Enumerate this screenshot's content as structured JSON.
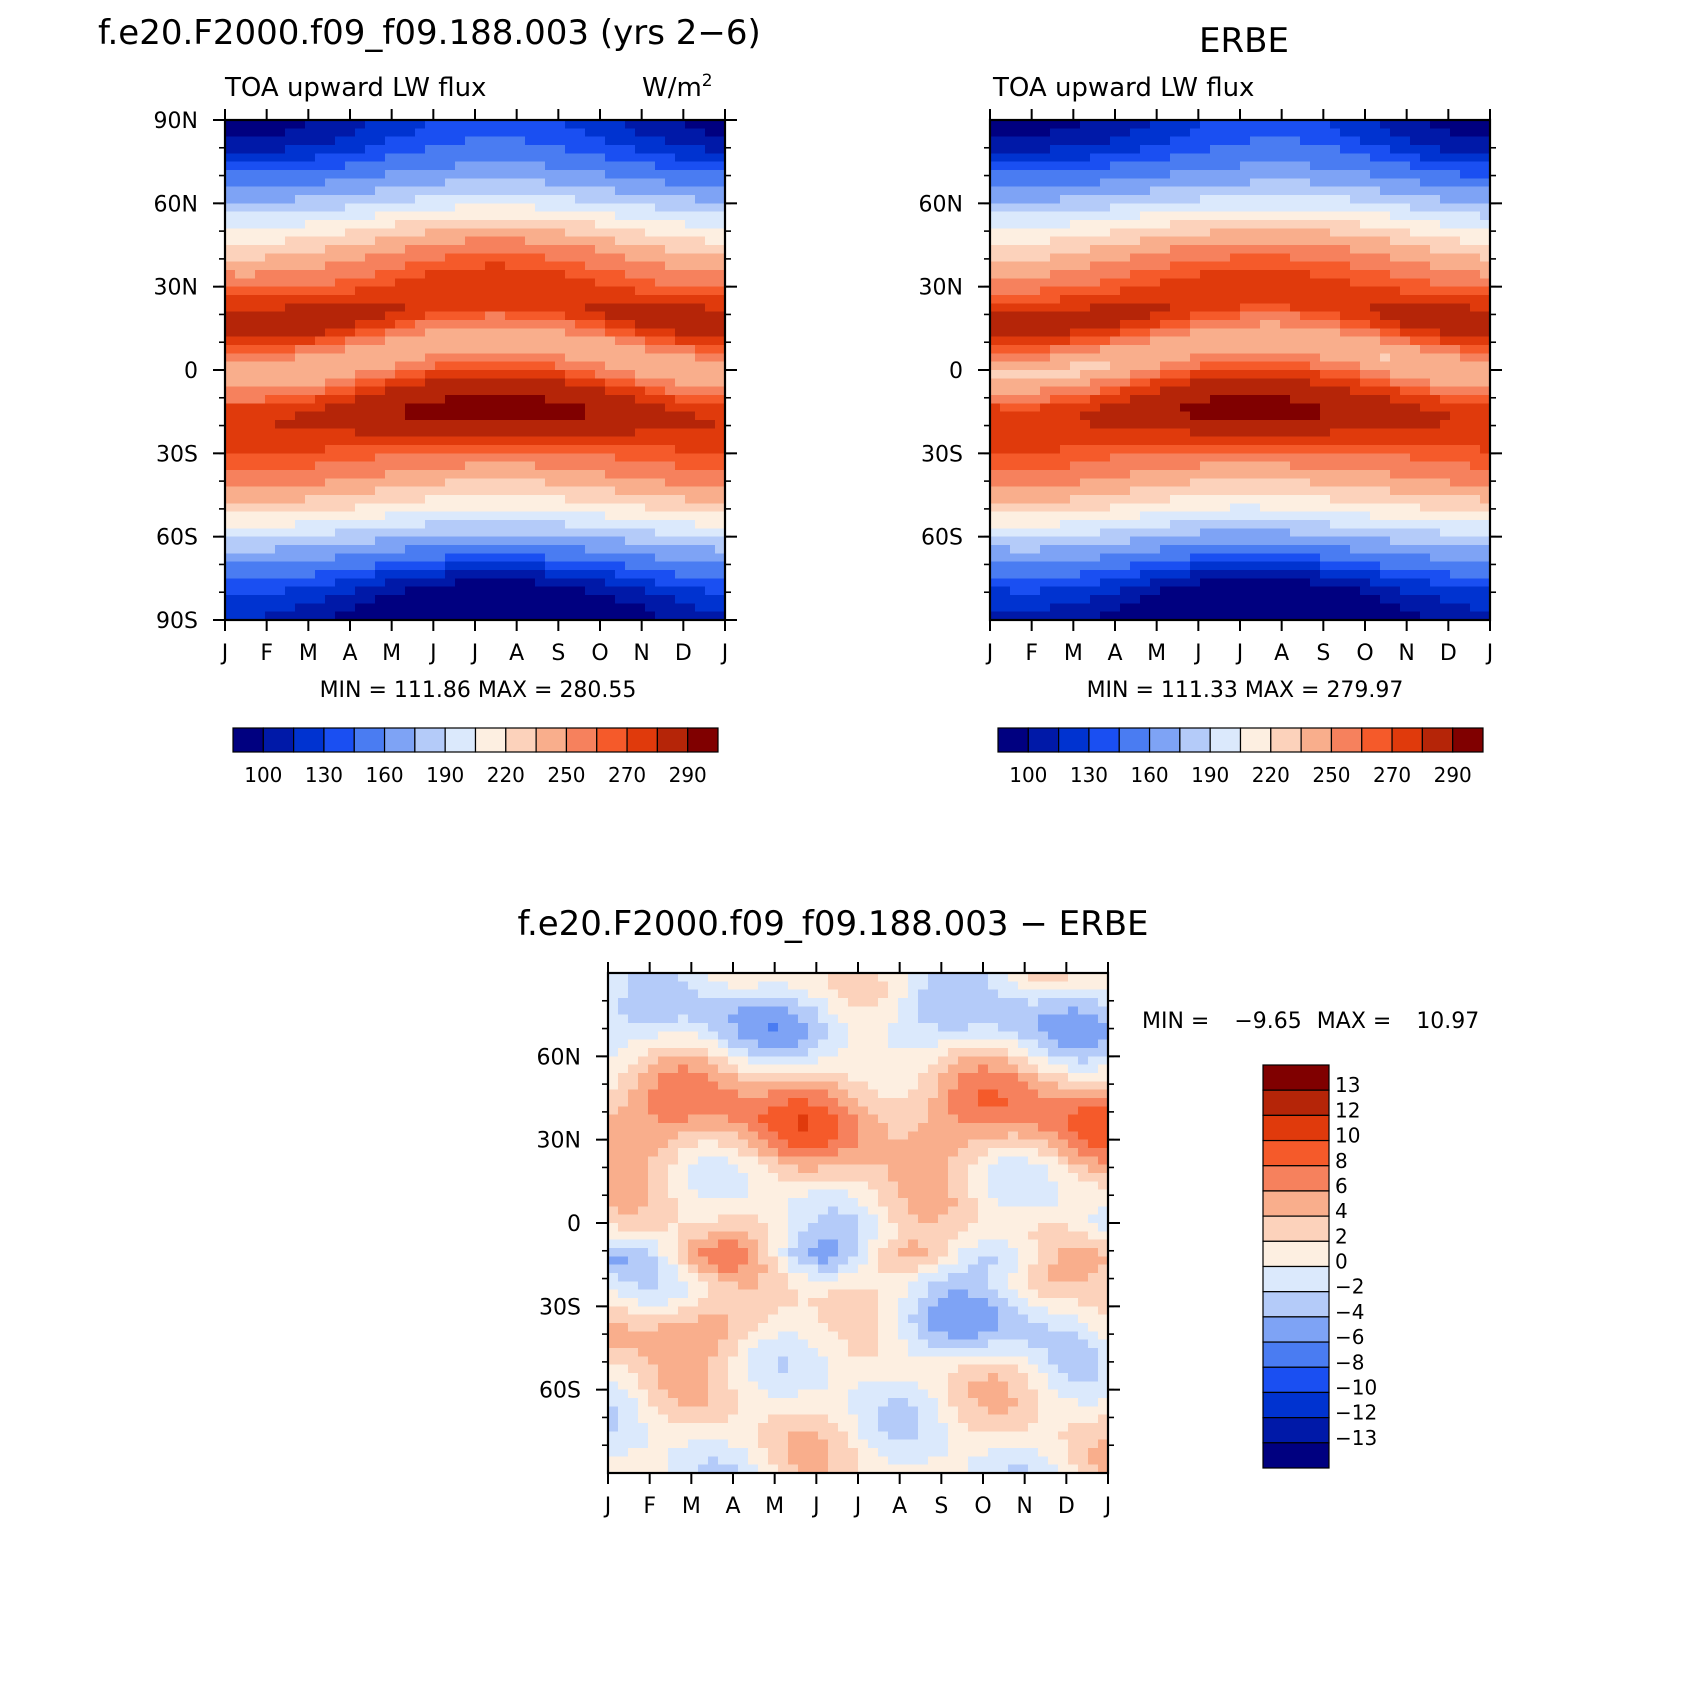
{
  "top_left": {
    "title": "f.e20.F2000.f09_f09.188.003 (yrs 2−6)",
    "left_subtitle": "TOA upward LW flux",
    "units": "W/m",
    "units_superscript": "2",
    "min_label": "MIN =",
    "min_value": "111.86",
    "max_label": "MAX =",
    "max_value": "280.55"
  },
  "top_right": {
    "title": "ERBE",
    "left_subtitle": "TOA upward LW flux",
    "min_label": "MIN =",
    "min_value": "111.33",
    "max_label": "MAX =",
    "max_value": "279.97"
  },
  "bottom": {
    "title": "f.e20.F2000.f09_f09.188.003 − ERBE",
    "min_label": "MIN =",
    "min_value": "−9.65",
    "max_label": "MAX =",
    "max_value": "10.97"
  },
  "chart_data": [
    {
      "type": "heatmap",
      "title": "f.e20.F2000.f09_f09.188.003 (yrs 2−6)",
      "subtitle_left": "TOA upward LW flux",
      "subtitle_right": "W/m2",
      "x_ticks": [
        "J",
        "F",
        "M",
        "A",
        "M",
        "J",
        "J",
        "A",
        "S",
        "O",
        "N",
        "D",
        "J"
      ],
      "y_ticks": [
        "90N",
        "60N",
        "30N",
        "0",
        "30S",
        "60S",
        "90S"
      ],
      "ylim": [
        -90,
        90
      ],
      "min": 111.86,
      "max": 280.55,
      "colorbar_labels": [
        "100",
        "130",
        "160",
        "190",
        "220",
        "250",
        "270",
        "290"
      ],
      "colorbar_levels": [
        100,
        110,
        120,
        130,
        145,
        160,
        175,
        190,
        205,
        220,
        235,
        250,
        260,
        270,
        280,
        290
      ],
      "palette": [
        "#000080",
        "#0019a8",
        "#0033d0",
        "#1a4ff2",
        "#4a7cf2",
        "#7ea3f5",
        "#b4cbf9",
        "#dbe9fc",
        "#fdefe1",
        "#fcd2bb",
        "#f9ae8c",
        "#f6815d",
        "#f55a2a",
        "#e03a0c",
        "#b52508",
        "#800000"
      ]
    },
    {
      "type": "heatmap",
      "title": "ERBE",
      "subtitle_left": "TOA upward LW flux",
      "x_ticks": [
        "J",
        "F",
        "M",
        "A",
        "M",
        "J",
        "J",
        "A",
        "S",
        "O",
        "N",
        "D",
        "J"
      ],
      "y_ticks": [
        "60N",
        "30N",
        "0",
        "30S",
        "60S"
      ],
      "ylim": [
        -90,
        90
      ],
      "min": 111.33,
      "max": 279.97,
      "colorbar_labels": [
        "100",
        "130",
        "160",
        "190",
        "220",
        "250",
        "270",
        "290"
      ],
      "colorbar_levels": [
        100,
        110,
        120,
        130,
        145,
        160,
        175,
        190,
        205,
        220,
        235,
        250,
        260,
        270,
        280,
        290
      ],
      "palette": [
        "#000080",
        "#0019a8",
        "#0033d0",
        "#1a4ff2",
        "#4a7cf2",
        "#7ea3f5",
        "#b4cbf9",
        "#dbe9fc",
        "#fdefe1",
        "#fcd2bb",
        "#f9ae8c",
        "#f6815d",
        "#f55a2a",
        "#e03a0c",
        "#b52508",
        "#800000"
      ]
    },
    {
      "type": "heatmap",
      "title": "f.e20.F2000.f09_f09.188.003 − ERBE",
      "x_ticks": [
        "J",
        "F",
        "M",
        "A",
        "M",
        "J",
        "J",
        "A",
        "S",
        "O",
        "N",
        "D",
        "J"
      ],
      "y_ticks": [
        "60N",
        "30N",
        "0",
        "30S",
        "60S"
      ],
      "ylim": [
        -90,
        90
      ],
      "min": -9.65,
      "max": 10.97,
      "colorbar_labels": [
        "13",
        "12",
        "10",
        "8",
        "6",
        "4",
        "2",
        "0",
        "−2",
        "−4",
        "−6",
        "−8",
        "−10",
        "−12",
        "−13"
      ],
      "colorbar_levels": [
        13,
        12,
        10,
        8,
        6,
        4,
        2,
        0,
        -2,
        -4,
        -6,
        -8,
        -10,
        -12,
        -13
      ],
      "palette": [
        "#800000",
        "#b52508",
        "#e03a0c",
        "#f55a2a",
        "#f6815d",
        "#f9ae8c",
        "#fcd2bb",
        "#fdefe1",
        "#dbe9fc",
        "#b4cbf9",
        "#7ea3f5",
        "#4a7cf2",
        "#1a4ff2",
        "#0033d0",
        "#0019a8",
        "#000080"
      ]
    }
  ]
}
